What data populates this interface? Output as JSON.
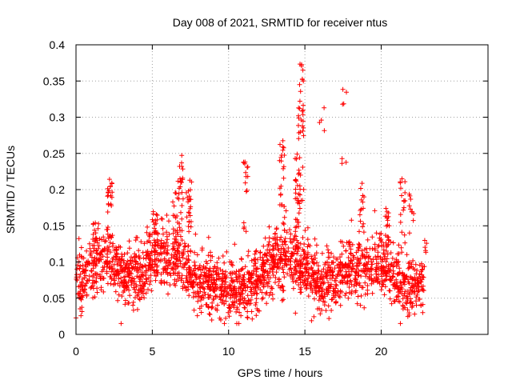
{
  "chart_data": {
    "type": "scatter",
    "title": "Day 008 of 2021, SRMTID for receiver ntus",
    "xlabel": "GPS time / hours",
    "ylabel": "SRMTID / TECUs",
    "xlim": [
      0,
      27
    ],
    "ylim": [
      0,
      0.4
    ],
    "x_ticks": [
      0,
      5,
      10,
      15,
      20
    ],
    "y_ticks": [
      0,
      0.05,
      0.1,
      0.15,
      0.2,
      0.25,
      0.3,
      0.35,
      0.4
    ],
    "x_tick_labels": [
      "0",
      "5",
      "10",
      "15",
      "20"
    ],
    "y_tick_labels": [
      "0",
      "0.05",
      "0.1",
      "0.15",
      "0.2",
      "0.25",
      "0.3",
      "0.35",
      "0.4"
    ],
    "grid": true,
    "marker": "+",
    "series": [
      {
        "name": "SRMTID",
        "color": "#ff0000",
        "profile": [
          {
            "x": 0.0,
            "y": 0.065
          },
          {
            "x": 1.0,
            "y": 0.09
          },
          {
            "x": 2.0,
            "y": 0.11
          },
          {
            "x": 3.0,
            "y": 0.085
          },
          {
            "x": 4.0,
            "y": 0.08
          },
          {
            "x": 5.0,
            "y": 0.1
          },
          {
            "x": 6.0,
            "y": 0.11
          },
          {
            "x": 7.0,
            "y": 0.1
          },
          {
            "x": 8.0,
            "y": 0.07
          },
          {
            "x": 9.0,
            "y": 0.075
          },
          {
            "x": 10.0,
            "y": 0.06
          },
          {
            "x": 11.0,
            "y": 0.065
          },
          {
            "x": 12.0,
            "y": 0.08
          },
          {
            "x": 13.0,
            "y": 0.1
          },
          {
            "x": 14.0,
            "y": 0.11
          },
          {
            "x": 15.0,
            "y": 0.09
          },
          {
            "x": 16.0,
            "y": 0.07
          },
          {
            "x": 17.0,
            "y": 0.075
          },
          {
            "x": 18.0,
            "y": 0.09
          },
          {
            "x": 19.0,
            "y": 0.085
          },
          {
            "x": 20.0,
            "y": 0.1
          },
          {
            "x": 21.0,
            "y": 0.08
          },
          {
            "x": 22.0,
            "y": 0.065
          },
          {
            "x": 22.8,
            "y": 0.07
          }
        ],
        "spread": 0.03,
        "n_base_points": 2200,
        "x_range": [
          0,
          22.8
        ],
        "spike_groups": [
          {
            "x": 1.25,
            "y_min": 0.11,
            "y_max": 0.17,
            "n": 14
          },
          {
            "x": 2.2,
            "y_min": 0.12,
            "y_max": 0.215,
            "n": 26
          },
          {
            "x": 5.2,
            "y_min": 0.11,
            "y_max": 0.175,
            "n": 18
          },
          {
            "x": 6.5,
            "y_min": 0.12,
            "y_max": 0.2,
            "n": 18
          },
          {
            "x": 6.85,
            "y_min": 0.15,
            "y_max": 0.25,
            "n": 20
          },
          {
            "x": 7.4,
            "y_min": 0.14,
            "y_max": 0.22,
            "n": 22
          },
          {
            "x": 11.1,
            "y_min": 0.19,
            "y_max": 0.24,
            "n": 12
          },
          {
            "x": 11.1,
            "y_min": 0.14,
            "y_max": 0.16,
            "n": 4
          },
          {
            "x": 13.5,
            "y_min": 0.14,
            "y_max": 0.27,
            "n": 26
          },
          {
            "x": 14.5,
            "y_min": 0.12,
            "y_max": 0.25,
            "n": 30
          },
          {
            "x": 14.75,
            "y_min": 0.18,
            "y_max": 0.375,
            "n": 40
          },
          {
            "x": 16.1,
            "y_min": 0.24,
            "y_max": 0.315,
            "n": 4
          },
          {
            "x": 17.6,
            "y_min": 0.31,
            "y_max": 0.34,
            "n": 4
          },
          {
            "x": 17.6,
            "y_min": 0.235,
            "y_max": 0.245,
            "n": 3
          },
          {
            "x": 18.7,
            "y_min": 0.13,
            "y_max": 0.21,
            "n": 14
          },
          {
            "x": 20.4,
            "y_min": 0.12,
            "y_max": 0.175,
            "n": 16
          },
          {
            "x": 21.4,
            "y_min": 0.13,
            "y_max": 0.215,
            "n": 16
          },
          {
            "x": 22.0,
            "y_min": 0.12,
            "y_max": 0.195,
            "n": 10
          },
          {
            "x": 22.9,
            "y_min": 0.09,
            "y_max": 0.13,
            "n": 6
          }
        ]
      }
    ]
  }
}
